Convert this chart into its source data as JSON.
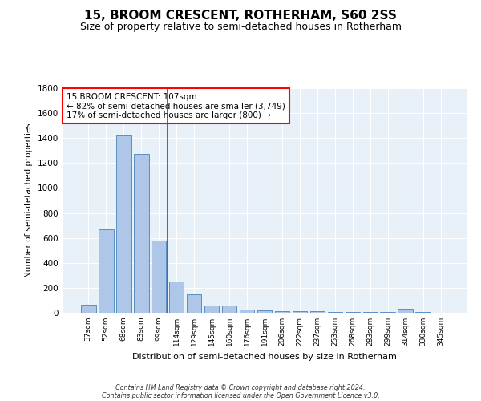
{
  "title1": "15, BROOM CRESCENT, ROTHERHAM, S60 2SS",
  "title2": "Size of property relative to semi-detached houses in Rotherham",
  "xlabel": "Distribution of semi-detached houses by size in Rotherham",
  "ylabel": "Number of semi-detached properties",
  "categories": [
    "37sqm",
    "52sqm",
    "68sqm",
    "83sqm",
    "99sqm",
    "114sqm",
    "129sqm",
    "145sqm",
    "160sqm",
    "176sqm",
    "191sqm",
    "206sqm",
    "222sqm",
    "237sqm",
    "253sqm",
    "268sqm",
    "283sqm",
    "299sqm",
    "314sqm",
    "330sqm",
    "345sqm"
  ],
  "values": [
    67,
    670,
    1430,
    1270,
    580,
    248,
    150,
    60,
    55,
    28,
    18,
    15,
    12,
    10,
    8,
    8,
    7,
    6,
    30,
    5,
    2
  ],
  "bar_color": "#aec6e8",
  "bar_edge_color": "#5a8fc2",
  "vline_color": "red",
  "annotation_text": "15 BROOM CRESCENT: 107sqm\n← 82% of semi-detached houses are smaller (3,749)\n17% of semi-detached houses are larger (800) →",
  "annotation_box_color": "white",
  "annotation_box_edge_color": "red",
  "ylim": [
    0,
    1800
  ],
  "yticks": [
    0,
    200,
    400,
    600,
    800,
    1000,
    1200,
    1400,
    1600,
    1800
  ],
  "footnote1": "Contains HM Land Registry data © Crown copyright and database right 2024.",
  "footnote2": "Contains public sector information licensed under the Open Government Licence v3.0.",
  "background_color": "#e8f0f8",
  "grid_color": "white",
  "title1_fontsize": 11,
  "title2_fontsize": 9,
  "annotation_fontsize": 7.5,
  "xlabel_fontsize": 8,
  "ylabel_fontsize": 7.5,
  "xtick_fontsize": 6.5,
  "ytick_fontsize": 7.5,
  "footnote_fontsize": 5.8
}
